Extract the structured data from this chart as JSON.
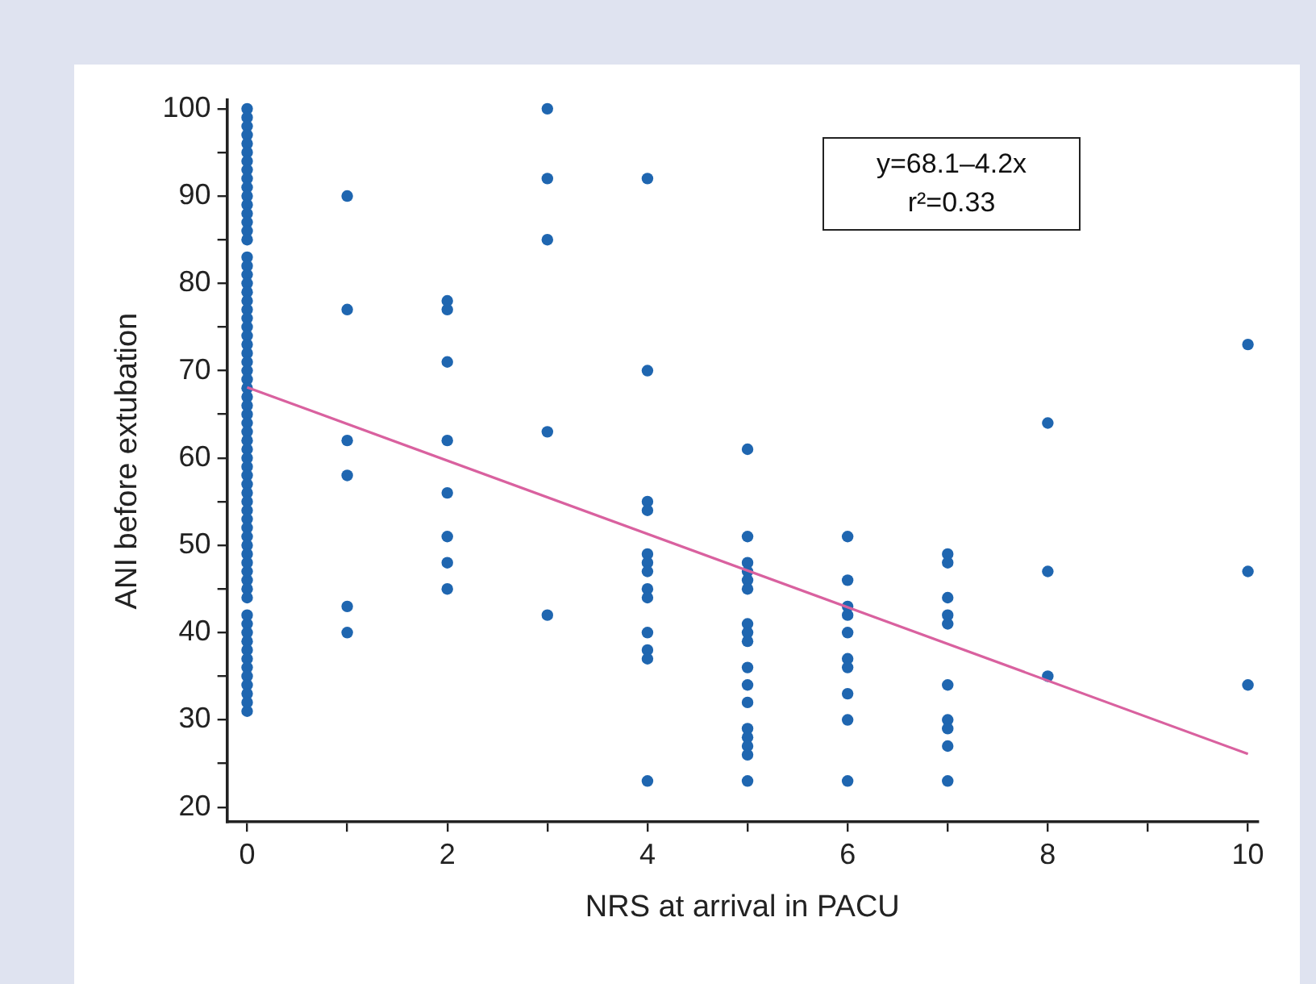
{
  "chart_data": {
    "type": "scatter",
    "xlabel": "NRS at arrival in PACU",
    "ylabel": "ANI before extubation",
    "annotations": [
      "y=68.1–4.2x",
      "r²=0.33"
    ],
    "xlim": [
      -0.2,
      10.1
    ],
    "ylim": [
      18.3,
      101
    ],
    "xticks": [
      0,
      {
        "value": 1,
        "label": null
      },
      2,
      {
        "value": 3,
        "label": null
      },
      4,
      {
        "value": 5,
        "label": null
      },
      6,
      {
        "value": 7,
        "label": null
      },
      8,
      {
        "value": 9,
        "label": null
      },
      10
    ],
    "yticks": [
      20,
      {
        "value": 25,
        "label": null
      },
      30,
      {
        "value": 35,
        "label": null
      },
      40,
      {
        "value": 45,
        "label": null
      },
      50,
      {
        "value": 55,
        "label": null
      },
      60,
      {
        "value": 65,
        "label": null
      },
      70,
      {
        "value": 75,
        "label": null
      },
      80,
      {
        "value": 85,
        "label": null
      },
      90,
      {
        "value": 95,
        "label": null
      },
      100
    ],
    "grid": false,
    "legend": false,
    "marker": "circle",
    "series": [
      {
        "color": "#1f66b0",
        "x": [
          0,
          0,
          0,
          0,
          0,
          0,
          0,
          0,
          0,
          0,
          0,
          0,
          0,
          0,
          0,
          0,
          0,
          0,
          0,
          0,
          0,
          0,
          0,
          0,
          0,
          0,
          0,
          0,
          0,
          0,
          0,
          0,
          0,
          0,
          0,
          0,
          0,
          0,
          0,
          0,
          0,
          0,
          0,
          0,
          0,
          0,
          0,
          0,
          0,
          0,
          0,
          0,
          0,
          0,
          0,
          0,
          0,
          0,
          0,
          0,
          0,
          0,
          0,
          0,
          0,
          0,
          0,
          0
        ],
        "values": [
          100,
          99,
          98,
          97,
          96,
          95,
          94,
          93,
          92,
          91,
          90,
          89,
          88,
          87,
          86,
          85,
          83,
          82,
          81,
          80,
          79,
          78,
          77,
          76,
          75,
          74,
          73,
          72,
          71,
          70,
          69,
          68,
          67,
          66,
          65,
          64,
          63,
          62,
          61,
          60,
          59,
          58,
          57,
          56,
          55,
          54,
          53,
          52,
          51,
          50,
          49,
          46,
          45,
          41,
          40,
          39,
          38,
          37,
          36,
          35,
          34,
          33,
          31,
          44,
          47,
          48,
          42,
          32
        ]
      },
      {
        "color": "#1f66b0",
        "x": [
          1,
          1,
          1,
          1,
          1,
          1,
          2,
          2,
          2,
          2,
          2,
          2,
          2,
          2,
          3,
          3,
          3,
          3,
          3,
          4,
          4,
          4,
          4,
          4,
          4,
          4,
          4,
          4,
          4,
          4,
          4,
          4
        ],
        "values": [
          90,
          77,
          62,
          58,
          43,
          40,
          78,
          77,
          71,
          62,
          56,
          51,
          48,
          45,
          100,
          92,
          85,
          63,
          42,
          92,
          70,
          55,
          54,
          49,
          48,
          47,
          45,
          44,
          40,
          38,
          37,
          23
        ]
      },
      {
        "color": "#1f66b0",
        "x": [
          5,
          5,
          5,
          5,
          5,
          5,
          5,
          5,
          5,
          5,
          5,
          5,
          5,
          5,
          5,
          5,
          5,
          6,
          6,
          6,
          6,
          6,
          6,
          6,
          6,
          6,
          6
        ],
        "values": [
          61,
          51,
          48,
          47,
          46,
          45,
          41,
          40,
          39,
          36,
          34,
          32,
          29,
          28,
          27,
          26,
          23,
          51,
          46,
          43,
          42,
          40,
          37,
          36,
          33,
          30,
          23
        ]
      },
      {
        "color": "#1f66b0",
        "x": [
          7,
          7,
          7,
          7,
          7,
          7,
          7,
          7,
          7,
          7,
          8,
          8,
          8,
          10,
          10,
          10
        ],
        "values": [
          49,
          48,
          44,
          42,
          41,
          34,
          30,
          29,
          27,
          23,
          64,
          47,
          35,
          73,
          47,
          34
        ]
      },
      {
        "type": "line",
        "color": "#d9619f",
        "x": [
          0,
          10
        ],
        "values": [
          68.1,
          26.1
        ],
        "marker": "none"
      }
    ]
  }
}
